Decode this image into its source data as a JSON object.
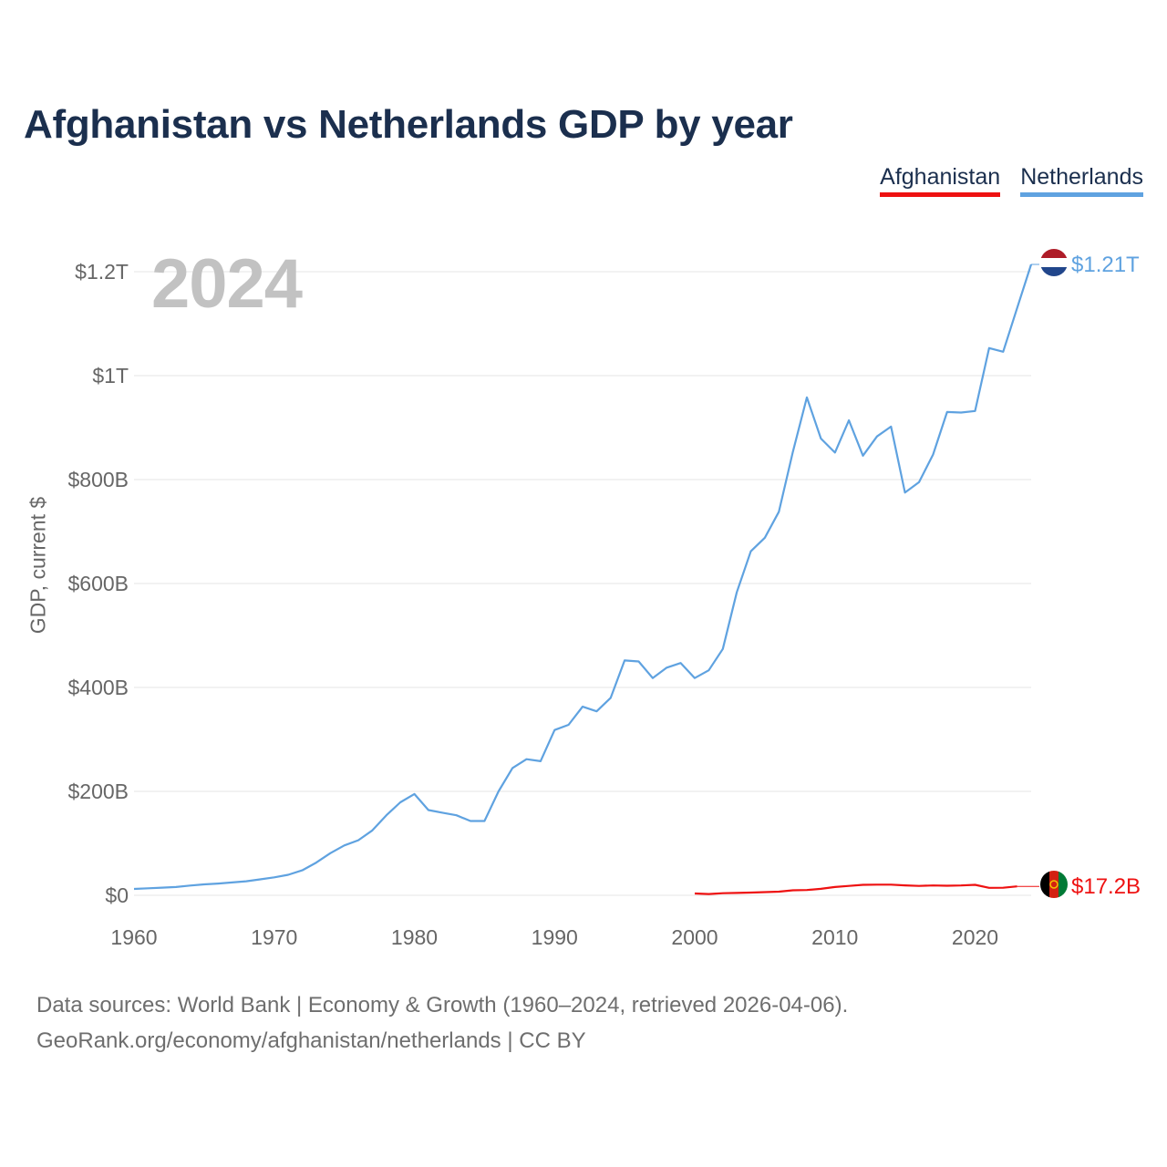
{
  "chart_data": {
    "type": "line",
    "title": "Afghanistan vs Netherlands GDP by year",
    "year_label": "2024",
    "ylabel": "GDP, current $",
    "xlabel": "",
    "xlim": [
      1960,
      2024
    ],
    "ylim": [
      0,
      1300000000000
    ],
    "grid": true,
    "legend_position": "top-right",
    "x_ticks": [
      1960,
      1970,
      1980,
      1990,
      2000,
      2010,
      2020
    ],
    "y_ticks": [
      {
        "value": 0,
        "label": "$0"
      },
      {
        "value": 200000000000,
        "label": "$200B"
      },
      {
        "value": 400000000000,
        "label": "$400B"
      },
      {
        "value": 600000000000,
        "label": "$600B"
      },
      {
        "value": 800000000000,
        "label": "$800B"
      },
      {
        "value": 1000000000000,
        "label": "$1T"
      },
      {
        "value": 1200000000000,
        "label": "$1.2T"
      }
    ],
    "series": [
      {
        "name": "Afghanistan",
        "color": "#ee1111",
        "end_label": "$17.2B",
        "x": [
          2000,
          2001,
          2002,
          2003,
          2004,
          2005,
          2006,
          2007,
          2008,
          2009,
          2010,
          2011,
          2012,
          2013,
          2014,
          2015,
          2016,
          2017,
          2018,
          2019,
          2020,
          2021,
          2022,
          2023
        ],
        "values": [
          3500000000.0,
          2500000000.0,
          4100000000.0,
          4600000000.0,
          5300000000.0,
          6200000000.0,
          7100000000.0,
          9700000000.0,
          10100000000.0,
          12400000000.0,
          15900000000.0,
          18000000000.0,
          20200000000.0,
          20600000000.0,
          20500000000.0,
          19100000000.0,
          18000000000.0,
          18900000000.0,
          18400000000.0,
          18900000000.0,
          20100000000.0,
          14300000000.0,
          14500000000.0,
          17200000000.0
        ]
      },
      {
        "name": "Netherlands",
        "color": "#5fa2e0",
        "end_label": "$1.21T",
        "x": [
          1960,
          1961,
          1962,
          1963,
          1964,
          1965,
          1966,
          1967,
          1968,
          1969,
          1970,
          1971,
          1972,
          1973,
          1974,
          1975,
          1976,
          1977,
          1978,
          1979,
          1980,
          1981,
          1982,
          1983,
          1984,
          1985,
          1986,
          1987,
          1988,
          1989,
          1990,
          1991,
          1992,
          1993,
          1994,
          1995,
          1996,
          1997,
          1998,
          1999,
          2000,
          2001,
          2002,
          2003,
          2004,
          2005,
          2006,
          2007,
          2008,
          2009,
          2010,
          2011,
          2012,
          2013,
          2014,
          2015,
          2016,
          2017,
          2018,
          2019,
          2020,
          2021,
          2022,
          2023,
          2024
        ],
        "values": [
          12300000000.0,
          13500000000.0,
          14800000000.0,
          16000000000.0,
          18700000000.0,
          21000000000.0,
          22700000000.0,
          24800000000.0,
          27000000000.0,
          30700000000.0,
          34600000000.0,
          39500000000.0,
          48000000000.0,
          63000000000.0,
          81000000000.0,
          96000000000.0,
          106000000000.0,
          125000000000.0,
          154000000000.0,
          179000000000.0,
          195000000000.0,
          164000000000.0,
          159000000000.0,
          154000000000.0,
          143000000000.0,
          143000000000.0,
          200000000000.0,
          245000000000.0,
          262000000000.0,
          258000000000.0,
          318000000000.0,
          328000000000.0,
          363000000000.0,
          354000000000.0,
          380000000000.0,
          452000000000.0,
          450000000000.0,
          418000000000.0,
          438000000000.0,
          447000000000.0,
          418000000000.0,
          433000000000.0,
          474000000000.0,
          583000000000.0,
          662000000000.0,
          688000000000.0,
          738000000000.0,
          853000000000.0,
          958000000000.0,
          879000000000.0,
          852000000000.0,
          914000000000.0,
          846000000000.0,
          883000000000.0,
          902000000000.0,
          775000000000.0,
          795000000000.0,
          848000000000.0,
          930000000000.0,
          929000000000.0,
          932000000000.0,
          1053000000000.0,
          1046000000000.0,
          1130000000000.0,
          1214000000000.0
        ]
      }
    ]
  },
  "legend": [
    "Afghanistan",
    "Netherlands"
  ],
  "source": {
    "line1": "Data sources: World Bank | Economy & Growth (1960–2024, retrieved 2026-04-06).",
    "line2": "GeoRank.org/economy/afghanistan/netherlands | CC BY"
  }
}
